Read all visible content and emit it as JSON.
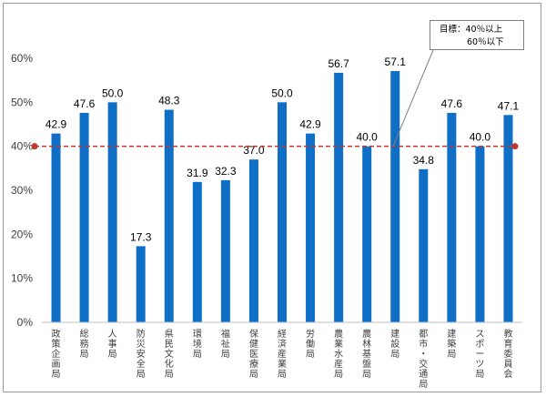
{
  "chart_data": {
    "type": "bar",
    "categories": [
      "政策企画局",
      "総務局",
      "人事局",
      "防災安全局",
      "県民文化局",
      "環境局",
      "福祉局",
      "保健医療局",
      "経済産業局",
      "労働局",
      "農業水産局",
      "農林基盤局",
      "建設局",
      "都市・交通局",
      "建築局",
      "スポーツ局",
      "教育委員会"
    ],
    "values": [
      42.9,
      47.6,
      50.0,
      17.3,
      48.3,
      31.9,
      32.3,
      37.0,
      50.0,
      42.9,
      56.7,
      40.0,
      57.1,
      34.8,
      47.6,
      40.0,
      47.1
    ],
    "value_labels": [
      "42.9",
      "47.6",
      "50.0",
      "17.3",
      "48.3",
      "31.9",
      "32.3",
      "37.0",
      "50.0",
      "42.9",
      "56.7",
      "40.0",
      "57.1",
      "34.8",
      "47.6",
      "40.0",
      "47.1"
    ],
    "ylim": [
      0,
      60
    ],
    "yticks": [
      0,
      10,
      20,
      30,
      40,
      50,
      60
    ],
    "ytick_labels": [
      "0%",
      "10%",
      "20%",
      "30%",
      "40%",
      "50%",
      "60%"
    ],
    "reference_line": {
      "value": 40,
      "style": "dashed",
      "color": "#c0392b"
    },
    "title": "",
    "xlabel": "",
    "ylabel": "",
    "grid": false,
    "bar_color": "#0f6fc6",
    "annotation": {
      "line1": "目標：40％以上",
      "line2": "60％以下"
    }
  }
}
